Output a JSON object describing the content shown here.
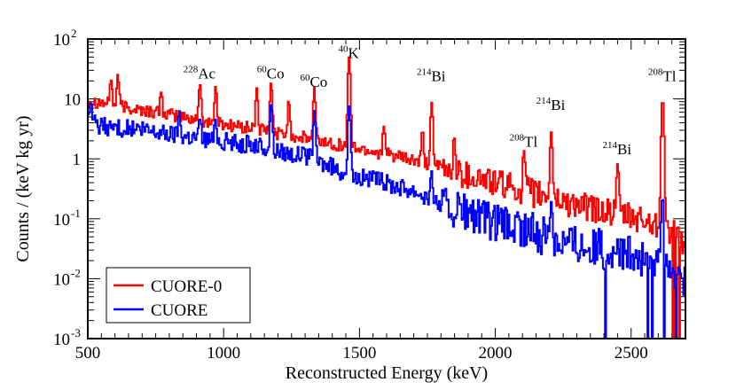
{
  "chart_data": {
    "type": "line",
    "title": "",
    "xlabel": "Reconstructed Energy (keV)",
    "ylabel": "Counts / (keV kg yr)",
    "xlim": [
      500,
      2700
    ],
    "ylim": [
      0.001,
      100
    ],
    "yscale": "log",
    "x_ticks": [
      {
        "value": 500,
        "label": "500"
      },
      {
        "value": 1000,
        "label": "1000"
      },
      {
        "value": 1500,
        "label": "1500"
      },
      {
        "value": 2000,
        "label": "2000"
      },
      {
        "value": 2500,
        "label": "2500"
      }
    ],
    "y_ticks": [
      {
        "value": 100,
        "base": "10",
        "exp": "2"
      },
      {
        "value": 10,
        "base": "10",
        "exp": ""
      },
      {
        "value": 1,
        "base": "1",
        "exp": ""
      },
      {
        "value": 0.1,
        "base": "10",
        "exp": "-1"
      },
      {
        "value": 0.01,
        "base": "10",
        "exp": "-2"
      },
      {
        "value": 0.001,
        "base": "10",
        "exp": "-3"
      }
    ],
    "series": [
      {
        "name": "CUORE-0",
        "color": "#ff0000",
        "continuum": [
          [
            500,
            9.5
          ],
          [
            560,
            8.5
          ],
          [
            700,
            6.5
          ],
          [
            900,
            4.5
          ],
          [
            1100,
            3.2
          ],
          [
            1300,
            2.2
          ],
          [
            1460,
            1.6
          ],
          [
            1600,
            1.2
          ],
          [
            1800,
            0.7
          ],
          [
            2000,
            0.4
          ],
          [
            2200,
            0.22
          ],
          [
            2400,
            0.13
          ],
          [
            2600,
            0.08
          ],
          [
            2700,
            0.04
          ]
        ],
        "peaks": [
          {
            "energy": 583,
            "height": 14
          },
          {
            "energy": 609,
            "height": 18
          },
          {
            "energy": 768,
            "height": 8
          },
          {
            "energy": 911,
            "height": 14
          },
          {
            "energy": 969,
            "height": 12
          },
          {
            "energy": 1120,
            "height": 12
          },
          {
            "energy": 1173,
            "height": 16
          },
          {
            "energy": 1238,
            "height": 7
          },
          {
            "energy": 1332,
            "height": 13
          },
          {
            "energy": 1460,
            "height": 48
          },
          {
            "energy": 1588,
            "height": 2.2
          },
          {
            "energy": 1730,
            "height": 2
          },
          {
            "energy": 1764,
            "height": 8
          },
          {
            "energy": 1847,
            "height": 1.7
          },
          {
            "energy": 2104,
            "height": 1.1
          },
          {
            "energy": 2204,
            "height": 2.6
          },
          {
            "energy": 2448,
            "height": 0.75
          },
          {
            "energy": 2614,
            "height": 10
          }
        ]
      },
      {
        "name": "CUORE",
        "color": "#0000ff",
        "continuum": [
          [
            500,
            4.0
          ],
          [
            560,
            3.5
          ],
          [
            700,
            3.0
          ],
          [
            900,
            2.3
          ],
          [
            1100,
            1.7
          ],
          [
            1300,
            1.1
          ],
          [
            1460,
            0.55
          ],
          [
            1550,
            0.45
          ],
          [
            1700,
            0.3
          ],
          [
            1800,
            0.17
          ],
          [
            2000,
            0.08
          ],
          [
            2200,
            0.05
          ],
          [
            2400,
            0.03
          ],
          [
            2600,
            0.018
          ],
          [
            2700,
            0.01
          ]
        ],
        "peaks": [
          {
            "energy": 511,
            "height": 4.8
          },
          {
            "energy": 835,
            "height": 3.5
          },
          {
            "energy": 911,
            "height": 2.6
          },
          {
            "energy": 969,
            "height": 2.3
          },
          {
            "energy": 1173,
            "height": 7
          },
          {
            "energy": 1332,
            "height": 5.5
          },
          {
            "energy": 1460,
            "height": 7
          },
          {
            "energy": 1764,
            "height": 0.35
          },
          {
            "energy": 2204,
            "height": 0.15
          },
          {
            "energy": 2614,
            "height": 0.22
          }
        ]
      }
    ],
    "peak_labels": [
      {
        "energy": 911,
        "value": 22,
        "mass": "228",
        "element": "Ac"
      },
      {
        "energy": 1173,
        "value": 22,
        "mass": "60",
        "element": "Co"
      },
      {
        "energy": 1332,
        "value": 16,
        "mass": "60",
        "element": "Co"
      },
      {
        "energy": 1460,
        "value": 48,
        "mass": "40",
        "element": "K"
      },
      {
        "energy": 1764,
        "value": 20,
        "mass": "214",
        "element": "Bi"
      },
      {
        "energy": 2104,
        "value": 1.6,
        "mass": "208",
        "element": "Tl"
      },
      {
        "energy": 2204,
        "value": 6.5,
        "mass": "214",
        "element": "Bi"
      },
      {
        "energy": 2448,
        "value": 1.2,
        "mass": "214",
        "element": "Bi"
      },
      {
        "energy": 2614,
        "value": 20,
        "mass": "208",
        "element": "Tl"
      }
    ],
    "legend": {
      "position": "bottom-left",
      "entries": [
        "CUORE-0",
        "CUORE"
      ]
    }
  }
}
